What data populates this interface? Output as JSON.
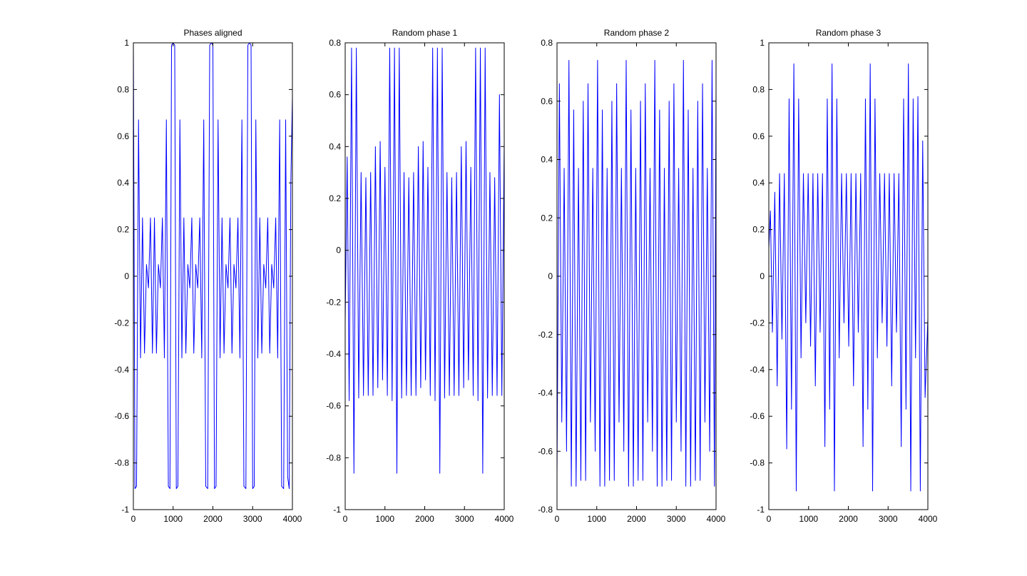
{
  "figure": {
    "background": "#ffffff",
    "line_color": "#0000ff",
    "axes_color": "#000000"
  },
  "chart_data": [
    {
      "type": "line",
      "title": "Phases aligned",
      "xlabel": "",
      "ylabel": "",
      "xlim": [
        0,
        4000
      ],
      "ylim": [
        -1,
        1
      ],
      "xticks": [
        0,
        1000,
        2000,
        3000,
        4000
      ],
      "xtick_labels": [
        "0",
        "1000",
        "2000",
        "3000",
        "4000"
      ],
      "yticks": [
        -1,
        -0.8,
        -0.6,
        -0.4,
        -0.2,
        0,
        0.2,
        0.4,
        0.6,
        0.8,
        1
      ],
      "ytick_labels": [
        "-1",
        "-0.8",
        "-0.6",
        "-0.4",
        "-0.2",
        "0",
        "0.2",
        "0.4",
        "0.6",
        "0.8",
        "1"
      ],
      "grid": false,
      "series": [
        {
          "color": "#0000ff",
          "x": [
            0,
            40,
            80,
            130,
            180,
            230,
            280,
            330,
            380,
            430,
            480,
            530,
            580,
            630,
            680,
            730,
            780,
            830,
            880,
            920,
            960,
            1000,
            1040,
            1080,
            1120,
            1170,
            1220,
            1270,
            1320,
            1370,
            1420,
            1470,
            1520,
            1570,
            1620,
            1670,
            1720,
            1770,
            1820,
            1870,
            1920,
            1960,
            2000,
            2040,
            2080,
            2130,
            2180,
            2230,
            2280,
            2330,
            2380,
            2430,
            2480,
            2530,
            2580,
            2630,
            2680,
            2730,
            2780,
            2830,
            2880,
            2920,
            2960,
            3000,
            3040,
            3080,
            3130,
            3180,
            3230,
            3280,
            3330,
            3380,
            3430,
            3480,
            3530,
            3580,
            3630,
            3680,
            3730,
            3780,
            3830,
            3880,
            3920,
            3960,
            4000
          ],
          "y": [
            1.0,
            -0.91,
            -0.9,
            0.67,
            -0.35,
            0.25,
            -0.33,
            0.05,
            -0.05,
            0.25,
            -0.33,
            0.25,
            -0.33,
            0.05,
            -0.05,
            0.25,
            -0.35,
            0.67,
            -0.9,
            -0.91,
            0.99,
            1.0,
            0.99,
            -0.91,
            -0.9,
            0.67,
            -0.35,
            0.25,
            -0.33,
            0.05,
            -0.05,
            0.25,
            -0.33,
            0.05,
            -0.05,
            0.25,
            -0.35,
            0.67,
            -0.9,
            -0.91,
            0.99,
            1.0,
            0.99,
            -0.91,
            -0.9,
            0.67,
            -0.35,
            0.25,
            -0.33,
            0.05,
            -0.05,
            0.25,
            -0.33,
            0.05,
            -0.05,
            0.25,
            -0.35,
            0.67,
            -0.9,
            -0.91,
            0.99,
            1.0,
            0.99,
            -0.91,
            -0.9,
            0.67,
            -0.35,
            0.25,
            -0.33,
            0.05,
            -0.05,
            0.25,
            -0.33,
            0.05,
            -0.05,
            0.25,
            -0.35,
            0.67,
            -0.9,
            -0.91,
            0.67,
            -0.86,
            -0.91,
            0.4,
            0.77
          ]
        }
      ]
    },
    {
      "type": "line",
      "title": "Random phase 1",
      "xlabel": "",
      "ylabel": "",
      "xlim": [
        0,
        4000
      ],
      "ylim": [
        -1,
        0.8
      ],
      "xticks": [
        0,
        1000,
        2000,
        3000,
        4000
      ],
      "xtick_labels": [
        "0",
        "1000",
        "2000",
        "3000",
        "4000"
      ],
      "yticks": [
        -1,
        -0.8,
        -0.6,
        -0.4,
        -0.2,
        0,
        0.2,
        0.4,
        0.6,
        0.8
      ],
      "ytick_labels": [
        "-1",
        "-0.8",
        "-0.6",
        "-0.4",
        "-0.2",
        "0",
        "0.2",
        "0.4",
        "0.6",
        "0.8"
      ],
      "grid": false,
      "series": [
        {
          "color": "#0000ff",
          "x": [
            0,
            50,
            100,
            160,
            220,
            280,
            340,
            400,
            460,
            520,
            580,
            640,
            700,
            760,
            820,
            880,
            940,
            1000,
            1060,
            1120,
            1180,
            1240,
            1300,
            1360,
            1420,
            1480,
            1540,
            1600,
            1660,
            1720,
            1780,
            1840,
            1900,
            1960,
            2020,
            2080,
            2140,
            2200,
            2260,
            2320,
            2380,
            2440,
            2500,
            2560,
            2620,
            2680,
            2740,
            2800,
            2860,
            2920,
            2980,
            3040,
            3100,
            3160,
            3220,
            3280,
            3340,
            3400,
            3460,
            3520,
            3580,
            3640,
            3700,
            3760,
            3820,
            3880,
            3940,
            4000
          ],
          "y": [
            -0.28,
            0.36,
            -0.58,
            0.78,
            -0.86,
            0.78,
            -0.57,
            0.3,
            -0.56,
            0.28,
            -0.56,
            0.3,
            -0.56,
            0.4,
            -0.53,
            0.42,
            -0.5,
            0.32,
            -0.56,
            0.78,
            -0.58,
            0.78,
            -0.86,
            0.78,
            -0.57,
            0.3,
            -0.56,
            0.28,
            -0.56,
            0.3,
            -0.56,
            0.4,
            -0.53,
            0.42,
            -0.5,
            0.32,
            -0.56,
            0.78,
            -0.58,
            0.78,
            -0.86,
            0.78,
            -0.57,
            0.3,
            -0.56,
            0.28,
            -0.56,
            0.3,
            -0.56,
            0.4,
            -0.53,
            0.42,
            -0.5,
            0.32,
            -0.56,
            0.78,
            -0.58,
            0.78,
            -0.86,
            0.78,
            -0.57,
            0.3,
            -0.56,
            0.28,
            -0.56,
            0.6,
            -0.56,
            0.42
          ]
        }
      ]
    },
    {
      "type": "line",
      "title": "Random phase 2",
      "xlabel": "",
      "ylabel": "",
      "xlim": [
        0,
        4000
      ],
      "ylim": [
        -0.8,
        0.8
      ],
      "xticks": [
        0,
        1000,
        2000,
        3000,
        4000
      ],
      "xtick_labels": [
        "0",
        "1000",
        "2000",
        "3000",
        "4000"
      ],
      "yticks": [
        -0.8,
        -0.6,
        -0.4,
        -0.2,
        0,
        0.2,
        0.4,
        0.6,
        0.8
      ],
      "ytick_labels": [
        "-0.8",
        "-0.6",
        "-0.4",
        "-0.2",
        "0",
        "0.2",
        "0.4",
        "0.6",
        "0.8"
      ],
      "grid": false,
      "series": [
        {
          "color": "#0000ff",
          "x": [
            0,
            60,
            120,
            180,
            240,
            300,
            360,
            420,
            480,
            540,
            600,
            660,
            720,
            780,
            840,
            900,
            960,
            1020,
            1080,
            1140,
            1200,
            1260,
            1320,
            1380,
            1440,
            1500,
            1560,
            1620,
            1680,
            1740,
            1800,
            1860,
            1920,
            1980,
            2040,
            2100,
            2160,
            2220,
            2280,
            2340,
            2400,
            2460,
            2520,
            2580,
            2640,
            2700,
            2760,
            2820,
            2880,
            2940,
            3000,
            3060,
            3120,
            3180,
            3240,
            3300,
            3360,
            3420,
            3480,
            3540,
            3600,
            3660,
            3720,
            3780,
            3840,
            3900,
            3960,
            4000
          ],
          "y": [
            -0.68,
            0.66,
            -0.5,
            0.37,
            -0.6,
            0.74,
            -0.72,
            0.57,
            -0.72,
            0.37,
            -0.7,
            0.6,
            -0.7,
            0.66,
            -0.5,
            0.37,
            -0.6,
            0.74,
            -0.72,
            0.57,
            -0.72,
            0.37,
            -0.7,
            0.6,
            -0.7,
            0.66,
            -0.5,
            0.37,
            -0.6,
            0.74,
            -0.72,
            0.57,
            -0.72,
            0.37,
            -0.7,
            0.6,
            -0.7,
            0.66,
            -0.5,
            0.37,
            -0.6,
            0.74,
            -0.72,
            0.57,
            -0.72,
            0.37,
            -0.7,
            0.6,
            -0.7,
            0.66,
            -0.5,
            0.37,
            -0.6,
            0.74,
            -0.72,
            0.57,
            -0.72,
            0.37,
            -0.7,
            0.6,
            -0.7,
            0.66,
            -0.5,
            0.37,
            -0.6,
            0.74,
            -0.72,
            0.64
          ]
        }
      ]
    },
    {
      "type": "line",
      "title": "Random phase 3",
      "xlabel": "",
      "ylabel": "",
      "xlim": [
        0,
        4000
      ],
      "ylim": [
        -1,
        1
      ],
      "xticks": [
        0,
        1000,
        2000,
        3000,
        4000
      ],
      "xtick_labels": [
        "0",
        "1000",
        "2000",
        "3000",
        "4000"
      ],
      "yticks": [
        -1,
        -0.8,
        -0.6,
        -0.4,
        -0.2,
        0,
        0.2,
        0.4,
        0.6,
        0.8,
        1
      ],
      "ytick_labels": [
        "-1",
        "-0.8",
        "-0.6",
        "-0.4",
        "-0.2",
        "0",
        "0.2",
        "0.4",
        "0.6",
        "0.8",
        "1"
      ],
      "grid": false,
      "series": [
        {
          "color": "#0000ff",
          "x": [
            0,
            40,
            90,
            150,
            210,
            270,
            330,
            390,
            450,
            510,
            570,
            630,
            690,
            750,
            810,
            870,
            930,
            990,
            1050,
            1110,
            1170,
            1230,
            1290,
            1350,
            1410,
            1470,
            1530,
            1590,
            1650,
            1710,
            1770,
            1830,
            1890,
            1950,
            2010,
            2070,
            2130,
            2190,
            2250,
            2310,
            2370,
            2430,
            2490,
            2550,
            2610,
            2670,
            2730,
            2790,
            2850,
            2910,
            2970,
            3030,
            3090,
            3150,
            3210,
            3270,
            3330,
            3390,
            3450,
            3510,
            3570,
            3630,
            3690,
            3750,
            3810,
            3870,
            3930,
            4000
          ],
          "y": [
            0.12,
            0.28,
            -0.24,
            0.36,
            -0.47,
            0.44,
            -0.27,
            0.44,
            -0.74,
            0.76,
            -0.57,
            0.91,
            -0.92,
            0.76,
            -0.35,
            0.44,
            -0.2,
            0.44,
            -0.3,
            0.44,
            -0.47,
            0.44,
            -0.24,
            0.44,
            -0.73,
            0.76,
            -0.57,
            0.91,
            -0.92,
            0.76,
            -0.35,
            0.44,
            -0.2,
            0.44,
            -0.3,
            0.44,
            -0.47,
            0.44,
            -0.24,
            0.44,
            -0.73,
            0.76,
            -0.57,
            0.91,
            -0.92,
            0.76,
            -0.35,
            0.44,
            -0.2,
            0.44,
            -0.3,
            0.44,
            -0.47,
            0.44,
            -0.24,
            0.44,
            -0.73,
            0.76,
            -0.57,
            0.91,
            -0.92,
            0.76,
            -0.35,
            0.77,
            -0.92,
            0.58,
            -0.52,
            -0.18
          ]
        }
      ]
    }
  ]
}
